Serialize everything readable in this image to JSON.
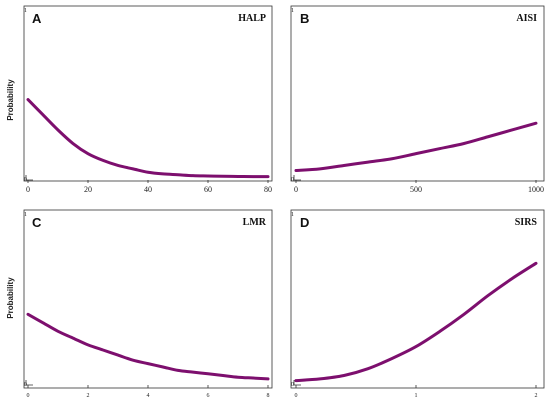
{
  "colors": {
    "curve": "#7d0f6e",
    "frame": "#333333"
  },
  "chart_data": [
    {
      "type": "line",
      "panel": "A",
      "title": "HALP",
      "ylabel": "Probability",
      "xlim": [
        0,
        80
      ],
      "ylim": [
        0,
        1
      ],
      "xticks": [
        0,
        20,
        40,
        60,
        80
      ],
      "xtick_labels": [
        "0",
        "20",
        "40",
        "60",
        "80"
      ],
      "yticks": [
        0,
        1
      ],
      "ytick_labels": [
        "0",
        "1"
      ],
      "series": [
        {
          "x": [
            0,
            5,
            10,
            15,
            20,
            25,
            30,
            35,
            40,
            45,
            50,
            55,
            60,
            65,
            70,
            75,
            80
          ],
          "values": [
            0.47,
            0.38,
            0.29,
            0.21,
            0.15,
            0.11,
            0.08,
            0.06,
            0.04,
            0.03,
            0.025,
            0.02,
            0.018,
            0.016,
            0.015,
            0.014,
            0.014
          ]
        }
      ]
    },
    {
      "type": "line",
      "panel": "B",
      "title": "AISI",
      "ylabel": "",
      "xlim": [
        0,
        1000
      ],
      "ylim": [
        0,
        1
      ],
      "xticks": [
        0,
        500,
        1000
      ],
      "xtick_labels": [
        "0",
        "500",
        "1000"
      ],
      "yticks": [
        0,
        1
      ],
      "ytick_labels": [
        "0",
        "1"
      ],
      "series": [
        {
          "x": [
            0,
            100,
            200,
            300,
            400,
            500,
            600,
            700,
            800,
            900,
            1000
          ],
          "values": [
            0.05,
            0.06,
            0.08,
            0.1,
            0.12,
            0.15,
            0.18,
            0.21,
            0.25,
            0.29,
            0.33
          ]
        }
      ]
    },
    {
      "type": "line",
      "panel": "C",
      "title": "LMR",
      "ylabel": "Probability",
      "xlim": [
        0,
        8
      ],
      "ylim": [
        0,
        1
      ],
      "xticks": [
        0,
        2,
        4,
        6,
        8
      ],
      "xtick_labels": [
        "0",
        "2",
        "4",
        "6",
        "8"
      ],
      "yticks": [
        0,
        1
      ],
      "ytick_labels": [
        "0",
        "1"
      ],
      "series": [
        {
          "x": [
            0,
            0.5,
            1,
            1.5,
            2,
            2.5,
            3,
            3.5,
            4,
            4.5,
            5,
            5.5,
            6,
            6.5,
            7,
            7.5,
            8
          ],
          "values": [
            0.41,
            0.36,
            0.31,
            0.27,
            0.23,
            0.2,
            0.17,
            0.14,
            0.12,
            0.1,
            0.08,
            0.07,
            0.06,
            0.05,
            0.04,
            0.035,
            0.03
          ]
        }
      ]
    },
    {
      "type": "line",
      "panel": "D",
      "title": "SIRS",
      "ylabel": "",
      "xlim": [
        0,
        2
      ],
      "ylim": [
        0,
        1
      ],
      "xticks": [
        0,
        1,
        2
      ],
      "xtick_labels": [
        "0",
        "1",
        "2"
      ],
      "yticks": [
        0,
        1
      ],
      "ytick_labels": [
        "0",
        "1"
      ],
      "series": [
        {
          "x": [
            0,
            0.2,
            0.4,
            0.6,
            0.8,
            1.0,
            1.2,
            1.4,
            1.6,
            1.8,
            2.0
          ],
          "values": [
            0.02,
            0.03,
            0.05,
            0.09,
            0.15,
            0.22,
            0.31,
            0.41,
            0.52,
            0.62,
            0.71
          ]
        }
      ]
    }
  ]
}
